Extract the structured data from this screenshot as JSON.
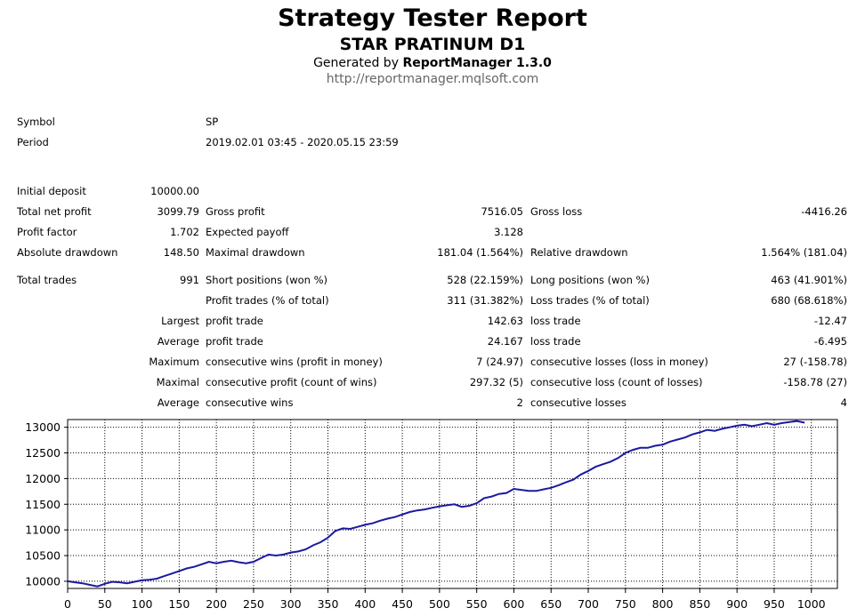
{
  "header": {
    "title": "Strategy Tester Report",
    "subtitle": "STAR PRATINUM D1",
    "generated_prefix": "Generated by ",
    "generator": "ReportManager 1.3.0",
    "url": "http://reportmanager.mqlsoft.com"
  },
  "info": {
    "symbol_label": "Symbol",
    "symbol_value": "SP",
    "period_label": "Period",
    "period_value": "2019.02.01 03:45 - 2020.05.15 23:59"
  },
  "stats": {
    "initial_deposit_label": "Initial deposit",
    "initial_deposit": "10000.00",
    "total_net_profit_label": "Total net profit",
    "total_net_profit": "3099.79",
    "gross_profit_label": "Gross profit",
    "gross_profit": "7516.05",
    "gross_loss_label": "Gross loss",
    "gross_loss": "-4416.26",
    "profit_factor_label": "Profit factor",
    "profit_factor": "1.702",
    "expected_payoff_label": "Expected payoff",
    "expected_payoff": "3.128",
    "absolute_drawdown_label": "Absolute drawdown",
    "absolute_drawdown": "148.50",
    "maximal_drawdown_label": "Maximal drawdown",
    "maximal_drawdown": "181.04 (1.564%)",
    "relative_drawdown_label": "Relative drawdown",
    "relative_drawdown": "1.564% (181.04)",
    "total_trades_label": "Total trades",
    "total_trades": "991",
    "short_positions_label": "Short positions (won %)",
    "short_positions": "528 (22.159%)",
    "long_positions_label": "Long positions (won %)",
    "long_positions": "463 (41.901%)",
    "profit_trades_label": "Profit trades (% of total)",
    "profit_trades": "311 (31.382%)",
    "loss_trades_label": "Loss trades (% of total)",
    "loss_trades": "680 (68.618%)",
    "largest_label": "Largest",
    "largest_profit_label": "profit trade",
    "largest_profit": "142.63",
    "largest_loss_label": "loss trade",
    "largest_loss": "-12.47",
    "average_label": "Average",
    "average_profit_label": "profit trade",
    "average_profit": "24.167",
    "average_loss_label": "loss trade",
    "average_loss": "-6.495",
    "maximum_label": "Maximum",
    "max_cons_wins_label": "consecutive wins (profit in money)",
    "max_cons_wins": "7 (24.97)",
    "max_cons_losses_label": "consecutive losses (loss in money)",
    "max_cons_losses": "27 (-158.78)",
    "maximal_label": "Maximal",
    "maximal_cons_profit_label": "consecutive profit (count of wins)",
    "maximal_cons_profit": "297.32 (5)",
    "maximal_cons_loss_label": "consecutive loss (count of losses)",
    "maximal_cons_loss": "-158.78 (27)",
    "average2_label": "Average",
    "avg_cons_wins_label": "consecutive wins",
    "avg_cons_wins": "2",
    "avg_cons_losses_label": "consecutive losses",
    "avg_cons_losses": "4"
  },
  "chart_data": {
    "type": "line",
    "xlim": [
      0,
      1035
    ],
    "ylim": [
      9860,
      13150
    ],
    "x_ticks": [
      0,
      50,
      100,
      150,
      200,
      250,
      300,
      350,
      400,
      450,
      500,
      550,
      600,
      650,
      700,
      750,
      800,
      850,
      900,
      950,
      1000
    ],
    "y_ticks": [
      10000,
      10500,
      11000,
      11500,
      12000,
      12500,
      13000
    ],
    "grid": true,
    "line_color": "#1a1aa0",
    "series": [
      {
        "x": [
          0,
          10,
          20,
          30,
          40,
          50,
          60,
          70,
          80,
          90,
          100,
          110,
          120,
          130,
          140,
          150,
          160,
          170,
          180,
          190,
          200,
          210,
          220,
          230,
          240,
          250,
          260,
          270,
          280,
          290,
          300,
          310,
          320,
          330,
          340,
          350,
          360,
          370,
          380,
          390,
          400,
          410,
          420,
          430,
          440,
          450,
          460,
          470,
          480,
          490,
          500,
          510,
          520,
          530,
          540,
          550,
          560,
          570,
          580,
          590,
          600,
          610,
          620,
          630,
          640,
          650,
          660,
          670,
          680,
          690,
          700,
          710,
          720,
          730,
          740,
          750,
          760,
          770,
          780,
          790,
          800,
          810,
          820,
          830,
          840,
          850,
          860,
          870,
          880,
          890,
          900,
          910,
          920,
          930,
          940,
          950,
          960,
          970,
          980,
          991
        ],
        "values": [
          10000,
          9980,
          9960,
          9930,
          9900,
          9950,
          9990,
          9980,
          9960,
          9990,
          10020,
          10030,
          10050,
          10100,
          10150,
          10200,
          10250,
          10280,
          10330,
          10380,
          10350,
          10380,
          10400,
          10370,
          10350,
          10380,
          10450,
          10520,
          10500,
          10520,
          10560,
          10580,
          10620,
          10700,
          10760,
          10850,
          10980,
          11030,
          11020,
          11060,
          11100,
          11130,
          11180,
          11220,
          11250,
          11300,
          11350,
          11380,
          11400,
          11430,
          11460,
          11480,
          11500,
          11450,
          11470,
          11520,
          11620,
          11650,
          11700,
          11720,
          11800,
          11780,
          11760,
          11760,
          11790,
          11820,
          11870,
          11930,
          11980,
          12080,
          12150,
          12230,
          12280,
          12330,
          12400,
          12500,
          12560,
          12600,
          12600,
          12640,
          12660,
          12720,
          12760,
          12800,
          12860,
          12900,
          12950,
          12930,
          12970,
          13000,
          13030,
          13050,
          13020,
          13050,
          13080,
          13050,
          13080,
          13100,
          13120,
          13090
        ]
      }
    ]
  }
}
